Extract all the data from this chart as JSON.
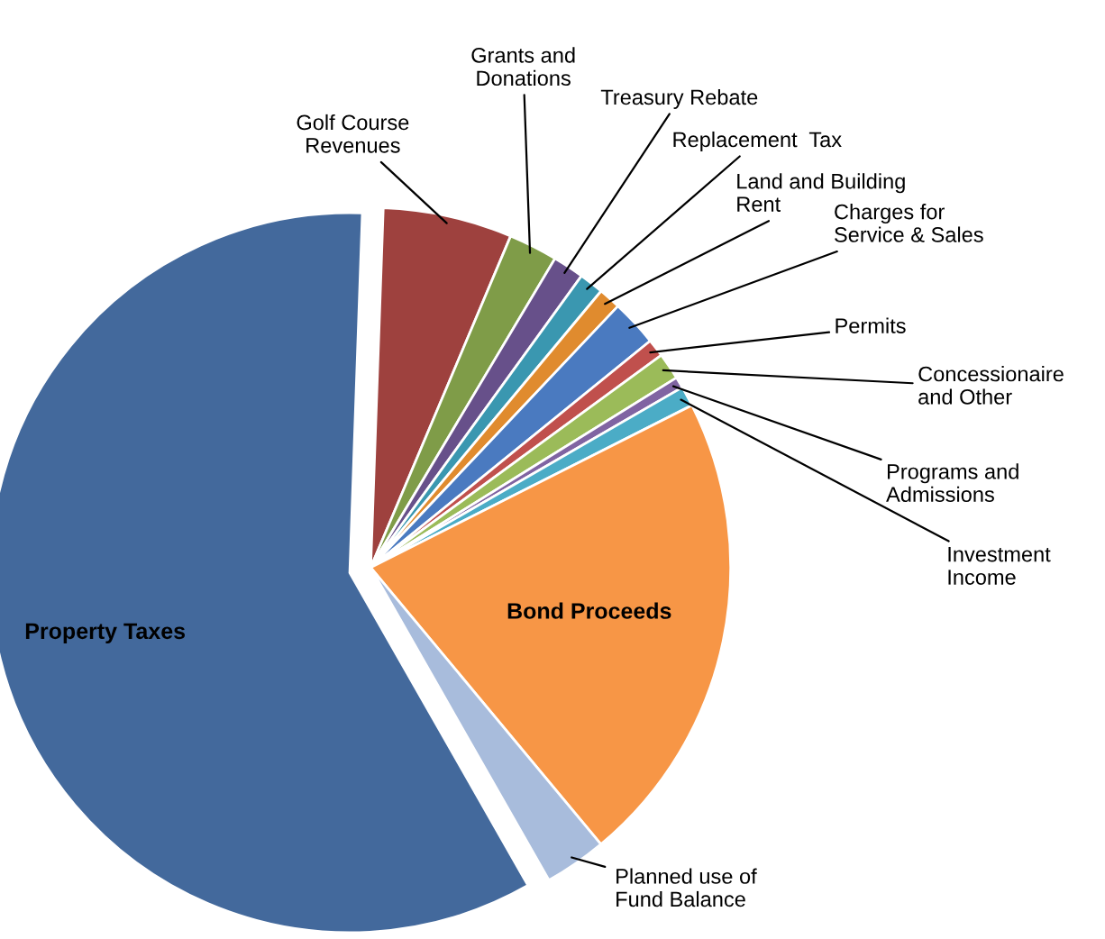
{
  "chart_data": {
    "type": "pie",
    "categories": [
      "Golf Course\nRevenues",
      "Grants and\nDonations",
      "Treasury Rebate",
      "Replacement  Tax",
      "Land and Building\nRent",
      "Charges for\nService & Sales",
      "Permits",
      "Concessionaire\nand Other",
      "Programs and\nAdmissions",
      "Investment\nIncome",
      "Bond Proceeds",
      "Planned use of\nFund Balance",
      "Property Taxes"
    ],
    "values": [
      5.8,
      2.2,
      1.4,
      1.1,
      1.0,
      2.1,
      0.8,
      1.2,
      0.5,
      0.9,
      21.4,
      2.8,
      58.8
    ],
    "colors": [
      "#9e413e",
      "#7f9c48",
      "#67508a",
      "#3a97b0",
      "#e08b2e",
      "#4a7ac0",
      "#c0504d",
      "#9bbb59",
      "#8064a2",
      "#4bacc6",
      "#f79646",
      "#a8bcdc",
      "#43699c"
    ],
    "legend": false
  }
}
